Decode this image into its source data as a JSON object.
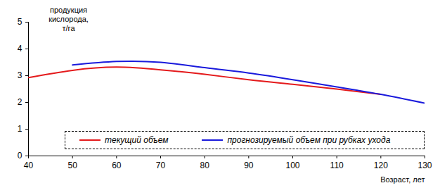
{
  "chart_data": {
    "type": "line",
    "y_label": "продукция кислорода, т/га",
    "x_label": "Возраст, лет",
    "x": [
      40,
      50,
      60,
      70,
      80,
      90,
      100,
      110,
      120,
      130
    ],
    "series": [
      {
        "name": "текущий объем",
        "color": "#e41a1c",
        "values": [
          2.93,
          3.2,
          3.32,
          3.22,
          3.05,
          2.85,
          2.68,
          2.5,
          2.3,
          null
        ]
      },
      {
        "name": "прогнозируемый объем при рубках ухода",
        "color": "#1a1adc",
        "values": [
          null,
          3.4,
          3.53,
          3.5,
          3.3,
          3.1,
          2.85,
          2.58,
          2.3,
          1.97
        ]
      }
    ],
    "xlim": [
      40,
      130
    ],
    "ylim": [
      0,
      5
    ],
    "xticks": [
      40,
      50,
      60,
      70,
      80,
      90,
      100,
      110,
      120,
      130
    ],
    "yticks": [
      0,
      1,
      2,
      3,
      4,
      5
    ],
    "grid": false,
    "legend": "bottom"
  }
}
